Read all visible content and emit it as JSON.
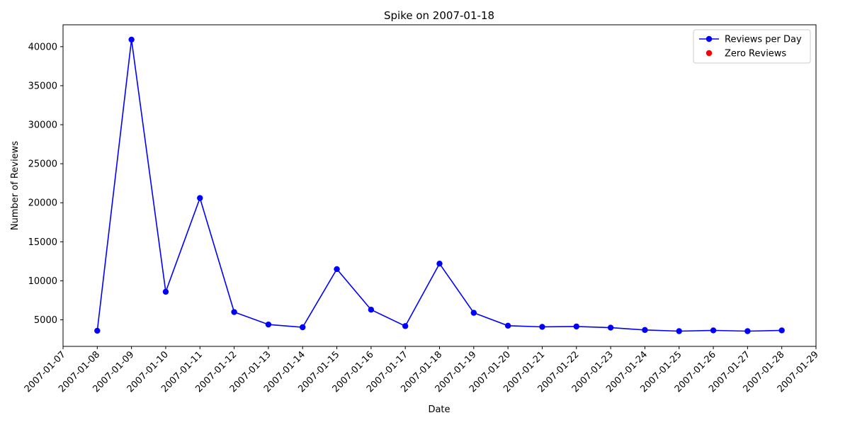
{
  "chart_data": {
    "type": "line",
    "title": "Spike on 2007-01-18",
    "xlabel": "Date",
    "ylabel": "Number of Reviews",
    "x_ticks": [
      "2007-01-07",
      "2007-01-08",
      "2007-01-09",
      "2007-01-10",
      "2007-01-11",
      "2007-01-12",
      "2007-01-13",
      "2007-01-14",
      "2007-01-15",
      "2007-01-16",
      "2007-01-17",
      "2007-01-18",
      "2007-01-19",
      "2007-01-20",
      "2007-01-21",
      "2007-01-22",
      "2007-01-23",
      "2007-01-24",
      "2007-01-25",
      "2007-01-26",
      "2007-01-27",
      "2007-01-28",
      "2007-01-29"
    ],
    "y_ticks": [
      5000,
      10000,
      15000,
      20000,
      25000,
      30000,
      35000,
      40000
    ],
    "xlim": [
      "2007-01-07",
      "2007-01-29"
    ],
    "ylim": [
      1600,
      42800
    ],
    "grid": false,
    "legend_position": "top-right",
    "series": [
      {
        "name": "Reviews per Day",
        "color": "#0000ff",
        "marker": "circle",
        "x": [
          "2007-01-08",
          "2007-01-09",
          "2007-01-10",
          "2007-01-11",
          "2007-01-12",
          "2007-01-13",
          "2007-01-14",
          "2007-01-15",
          "2007-01-16",
          "2007-01-17",
          "2007-01-18",
          "2007-01-19",
          "2007-01-20",
          "2007-01-21",
          "2007-01-22",
          "2007-01-23",
          "2007-01-24",
          "2007-01-25",
          "2007-01-26",
          "2007-01-27",
          "2007-01-28"
        ],
        "values": [
          3600,
          40900,
          8600,
          20600,
          6000,
          4400,
          4050,
          11500,
          6300,
          4200,
          12200,
          5900,
          4250,
          4100,
          4150,
          4000,
          3700,
          3550,
          3650,
          3550,
          3650
        ]
      },
      {
        "name": "Zero Reviews",
        "color": "#ff0000",
        "marker": "circle",
        "x": [],
        "values": []
      }
    ]
  }
}
